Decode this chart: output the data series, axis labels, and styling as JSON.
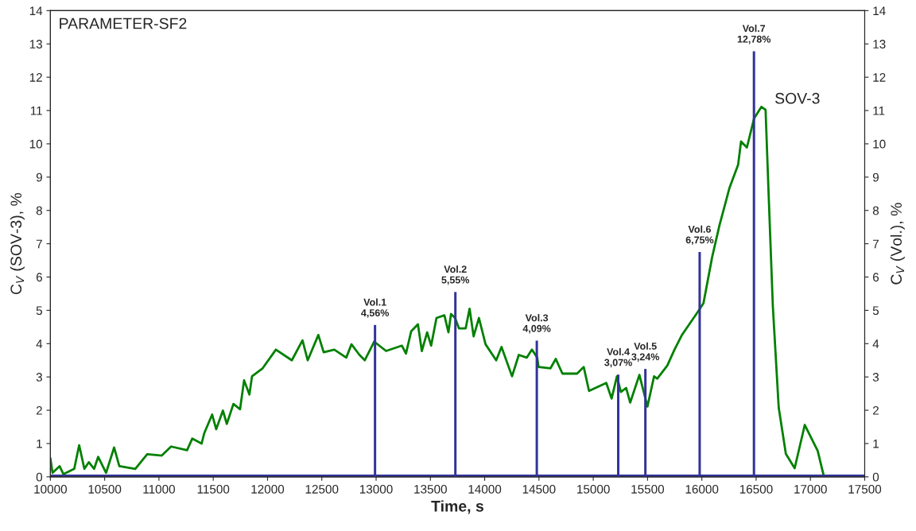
{
  "chart_data": {
    "type": "line",
    "title": "PARAMETER-SF2",
    "xlabel": "Time, s",
    "ylabel": "C$_{V}$ (SOV-3), %",
    "y2label": "C$_{V}$ (Vol.), %",
    "xlim": [
      10000,
      17500
    ],
    "xticks": [
      10000,
      10500,
      11000,
      11500,
      12000,
      12500,
      13000,
      13500,
      14000,
      14500,
      15000,
      15500,
      16000,
      16500,
      17000,
      17500
    ],
    "ylim": [
      0,
      14
    ],
    "yticks": [
      0,
      1,
      2,
      3,
      4,
      5,
      6,
      7,
      8,
      9,
      10,
      11,
      12,
      13,
      14
    ],
    "y2lim": [
      0,
      14
    ],
    "y2ticks": [
      0,
      1,
      2,
      3,
      4,
      5,
      6,
      7,
      8,
      9,
      10,
      11,
      12,
      13,
      14
    ],
    "grid": false,
    "legend": false,
    "ref_lines": [
      {
        "axis": "y",
        "value": 0,
        "color": "#333399"
      }
    ],
    "series": [
      {
        "name": "SOV-3",
        "color": "#008000",
        "x": [
          10000,
          10020,
          10085,
          10120,
          10220,
          10265,
          10313,
          10354,
          10403,
          10440,
          10513,
          10587,
          10635,
          10782,
          10892,
          11026,
          11112,
          11259,
          11307,
          11393,
          11417,
          11490,
          11527,
          11589,
          11625,
          11686,
          11747,
          11784,
          11833,
          11857,
          11955,
          12077,
          12224,
          12322,
          12370,
          12468,
          12517,
          12615,
          12725,
          12773,
          12847,
          12896,
          12982,
          13092,
          13238,
          13275,
          13323,
          13385,
          13421,
          13470,
          13507,
          13556,
          13629,
          13666,
          13690,
          13727,
          13763,
          13825,
          13861,
          13898,
          13947,
          14008,
          14106,
          14155,
          14252,
          14314,
          14387,
          14435,
          14484,
          14496,
          14606,
          14655,
          14716,
          14851,
          14912,
          14961,
          15120,
          15169,
          15218,
          15254,
          15303,
          15340,
          15425,
          15499,
          15560,
          15589,
          15682,
          15748,
          15815,
          15962,
          16015,
          16095,
          16162,
          16255,
          16334,
          16361,
          16415,
          16481,
          16548,
          16587,
          16614,
          16654,
          16708,
          16774,
          16855,
          16948,
          17067,
          17122
        ],
        "values": [
          0.56,
          0.12,
          0.32,
          0.08,
          0.24,
          0.95,
          0.24,
          0.44,
          0.24,
          0.6,
          0.12,
          0.88,
          0.32,
          0.24,
          0.68,
          0.64,
          0.91,
          0.8,
          1.15,
          1.0,
          1.31,
          1.87,
          1.43,
          1.99,
          1.59,
          2.19,
          2.03,
          2.9,
          2.47,
          3.02,
          3.26,
          3.82,
          3.5,
          4.1,
          3.5,
          4.26,
          3.74,
          3.82,
          3.58,
          3.98,
          3.66,
          3.5,
          4.06,
          3.78,
          3.94,
          3.7,
          4.37,
          4.58,
          3.78,
          4.34,
          3.94,
          4.77,
          4.85,
          4.34,
          4.89,
          4.77,
          4.46,
          4.46,
          5.05,
          4.22,
          4.77,
          3.98,
          3.5,
          3.9,
          3.02,
          3.66,
          3.58,
          3.82,
          3.58,
          3.3,
          3.26,
          3.54,
          3.1,
          3.1,
          3.3,
          2.58,
          2.82,
          2.35,
          3.02,
          2.55,
          2.67,
          2.23,
          3.06,
          2.11,
          3.02,
          2.95,
          3.34,
          3.82,
          4.25,
          4.95,
          5.21,
          6.6,
          7.55,
          8.68,
          9.37,
          10.07,
          9.89,
          10.76,
          11.11,
          11.02,
          8.59,
          5.12,
          2.08,
          0.69,
          0.26,
          1.56,
          0.78,
          0.04
        ]
      },
      {
        "type": "bar",
        "axis": "y2",
        "color": "#333399",
        "x": [
          12990,
          13730,
          14480,
          15230,
          15480,
          15980,
          16480
        ],
        "values": [
          4.56,
          5.55,
          4.09,
          3.07,
          3.24,
          6.75,
          12.78
        ],
        "value_labels": [
          "Vol.1\n4,56%",
          "Vol.2\n5,55%",
          "Vol.3\n4,09%",
          "Vol.4\n3,07%",
          "Vol.5\n3,24%",
          "Vol.6\n6,75%",
          "Vol.7\n12,78%"
        ]
      }
    ]
  }
}
